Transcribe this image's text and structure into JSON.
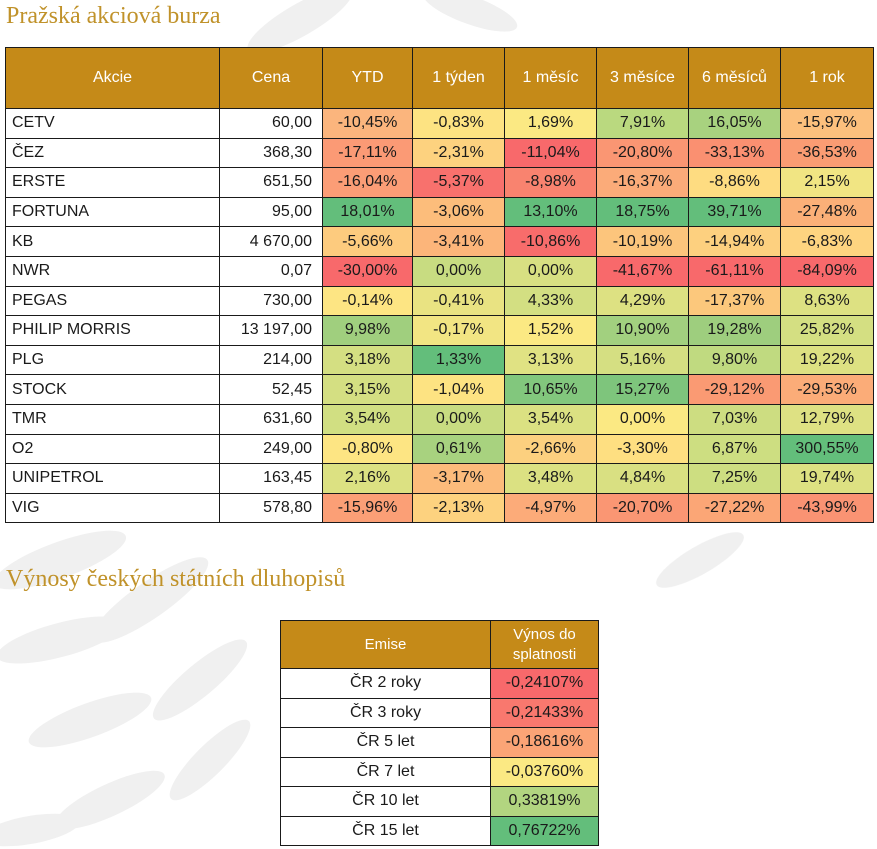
{
  "stocks": {
    "title": "Pražská akciová burza",
    "headers": [
      "Akcie",
      "Cena",
      "YTD",
      "1 týden",
      "1 měsíc",
      "3 měsíce",
      "6 měsíců",
      "1 rok"
    ],
    "rows": [
      {
        "name": "CETV",
        "price": "60,00",
        "values": [
          {
            "text": "-10,45%",
            "color": "#fbb57d"
          },
          {
            "text": "-0,83%",
            "color": "#fde382"
          },
          {
            "text": "1,69%",
            "color": "#fbe983"
          },
          {
            "text": "7,91%",
            "color": "#bad97f"
          },
          {
            "text": "16,05%",
            "color": "#a8d27f"
          },
          {
            "text": "-15,97%",
            "color": "#fcc07d"
          }
        ]
      },
      {
        "name": "ČEZ",
        "price": "368,30",
        "values": [
          {
            "text": "-17,11%",
            "color": "#fb9a75"
          },
          {
            "text": "-2,31%",
            "color": "#fdd27f"
          },
          {
            "text": "-11,04%",
            "color": "#f8696b"
          },
          {
            "text": "-20,80%",
            "color": "#fa9673"
          },
          {
            "text": "-33,13%",
            "color": "#fa9071"
          },
          {
            "text": "-36,53%",
            "color": "#fa9c73"
          }
        ]
      },
      {
        "name": "ERSTE",
        "price": "651,50",
        "values": [
          {
            "text": "-16,04%",
            "color": "#fb9d76"
          },
          {
            "text": "-5,37%",
            "color": "#f8716d"
          },
          {
            "text": "-8,98%",
            "color": "#f9836f"
          },
          {
            "text": "-16,37%",
            "color": "#fbab79"
          },
          {
            "text": "-8,86%",
            "color": "#fedc81"
          },
          {
            "text": "2,15%",
            "color": "#f1e583"
          }
        ]
      },
      {
        "name": "FORTUNA",
        "price": "95,00",
        "values": [
          {
            "text": "18,01%",
            "color": "#63be7b"
          },
          {
            "text": "-3,06%",
            "color": "#fcbd7b"
          },
          {
            "text": "13,10%",
            "color": "#63be7b"
          },
          {
            "text": "18,75%",
            "color": "#63be7b"
          },
          {
            "text": "39,71%",
            "color": "#63be7b"
          },
          {
            "text": "-27,48%",
            "color": "#fbb078"
          }
        ]
      },
      {
        "name": "KB",
        "price": "4 670,00",
        "values": [
          {
            "text": "-5,66%",
            "color": "#fdcb7e"
          },
          {
            "text": "-3,41%",
            "color": "#fcb57a"
          },
          {
            "text": "-10,86%",
            "color": "#f86c6b"
          },
          {
            "text": "-10,19%",
            "color": "#fcc57c"
          },
          {
            "text": "-14,94%",
            "color": "#fdd07f"
          },
          {
            "text": "-6,83%",
            "color": "#fed480"
          }
        ]
      },
      {
        "name": "NWR",
        "price": "0,07",
        "values": [
          {
            "text": "-30,00%",
            "color": "#f8696b"
          },
          {
            "text": "0,00%",
            "color": "#c8dc81"
          },
          {
            "text": "0,00%",
            "color": "#d8e082"
          },
          {
            "text": "-41,67%",
            "color": "#f8696b"
          },
          {
            "text": "-61,11%",
            "color": "#f8696b"
          },
          {
            "text": "-84,09%",
            "color": "#f8696b"
          }
        ]
      },
      {
        "name": "PEGAS",
        "price": "730,00",
        "values": [
          {
            "text": "-0,14%",
            "color": "#fde583"
          },
          {
            "text": "-0,41%",
            "color": "#e9e382"
          },
          {
            "text": "4,33%",
            "color": "#d3df82"
          },
          {
            "text": "4,29%",
            "color": "#dde182"
          },
          {
            "text": "-17,37%",
            "color": "#fcc87c"
          },
          {
            "text": "8,63%",
            "color": "#dde182"
          }
        ]
      },
      {
        "name": "PHILIP MORRIS",
        "price": "13 197,00",
        "values": [
          {
            "text": "9,98%",
            "color": "#a0cf7e"
          },
          {
            "text": "-0,17%",
            "color": "#f2e583"
          },
          {
            "text": "1,52%",
            "color": "#fbe983"
          },
          {
            "text": "10,90%",
            "color": "#a2d07f"
          },
          {
            "text": "19,28%",
            "color": "#9ece7e"
          },
          {
            "text": "25,82%",
            "color": "#d4df82"
          }
        ]
      },
      {
        "name": "PLG",
        "price": "214,00",
        "values": [
          {
            "text": "3,18%",
            "color": "#d4df82"
          },
          {
            "text": "1,33%",
            "color": "#63be7b"
          },
          {
            "text": "3,13%",
            "color": "#e0e283"
          },
          {
            "text": "5,16%",
            "color": "#d5df82"
          },
          {
            "text": "9,80%",
            "color": "#c0da80"
          },
          {
            "text": "19,22%",
            "color": "#dde182"
          }
        ]
      },
      {
        "name": "STOCK",
        "price": "52,45",
        "values": [
          {
            "text": "3,15%",
            "color": "#d4df82"
          },
          {
            "text": "-1,04%",
            "color": "#fde382"
          },
          {
            "text": "10,65%",
            "color": "#82c77d"
          },
          {
            "text": "15,27%",
            "color": "#7ec57c"
          },
          {
            "text": "-29,12%",
            "color": "#fa9a73"
          },
          {
            "text": "-29,53%",
            "color": "#fbac78"
          }
        ]
      },
      {
        "name": "TMR",
        "price": "631,60",
        "values": [
          {
            "text": "3,54%",
            "color": "#d1df82"
          },
          {
            "text": "0,00%",
            "color": "#c8dc81"
          },
          {
            "text": "3,54%",
            "color": "#dbe182"
          },
          {
            "text": "0,00%",
            "color": "#fbe983"
          },
          {
            "text": "7,03%",
            "color": "#cddd81"
          },
          {
            "text": "12,79%",
            "color": "#dee183"
          }
        ]
      },
      {
        "name": "O2",
        "price": "249,00",
        "values": [
          {
            "text": "-0,80%",
            "color": "#fde583"
          },
          {
            "text": "0,61%",
            "color": "#a8d27f"
          },
          {
            "text": "-2,66%",
            "color": "#fcd07f"
          },
          {
            "text": "-3,30%",
            "color": "#fedf81"
          },
          {
            "text": "6,87%",
            "color": "#cdde81"
          },
          {
            "text": "300,55%",
            "color": "#63be7b"
          }
        ]
      },
      {
        "name": "UNIPETROL",
        "price": "163,45",
        "values": [
          {
            "text": "2,16%",
            "color": "#dce182"
          },
          {
            "text": "-3,17%",
            "color": "#fcbb7b"
          },
          {
            "text": "3,48%",
            "color": "#dbe182"
          },
          {
            "text": "4,84%",
            "color": "#d9e082"
          },
          {
            "text": "7,25%",
            "color": "#cdde81"
          },
          {
            "text": "19,74%",
            "color": "#dde182"
          }
        ]
      },
      {
        "name": "VIG",
        "price": "578,80",
        "values": [
          {
            "text": "-15,96%",
            "color": "#fb9f76"
          },
          {
            "text": "-2,13%",
            "color": "#fdd27f"
          },
          {
            "text": "-4,97%",
            "color": "#fcab79"
          },
          {
            "text": "-20,70%",
            "color": "#fa9673"
          },
          {
            "text": "-27,22%",
            "color": "#fba676"
          },
          {
            "text": "-43,99%",
            "color": "#fa9373"
          }
        ]
      }
    ]
  },
  "bonds": {
    "title": "Výnosy českých státních dluhopisů",
    "headers": {
      "emise": "Emise",
      "yield_line1": "Výnos do",
      "yield_line2": "splatnosti"
    },
    "rows": [
      {
        "emise": "ČR 2 roky",
        "yield": "-0,24107%",
        "color": "#f8696b"
      },
      {
        "emise": "ČR 3 roky",
        "yield": "-0,21433%",
        "color": "#f9786e"
      },
      {
        "emise": "ČR 5 let",
        "yield": "-0,18616%",
        "color": "#fba476"
      },
      {
        "emise": "ČR 7 let",
        "yield": "-0,03760%",
        "color": "#fbe983"
      },
      {
        "emise": "ČR 10 let",
        "yield": "0,33819%",
        "color": "#b2d580"
      },
      {
        "emise": "ČR 15 let",
        "yield": "0,76722%",
        "color": "#63be7b"
      }
    ]
  }
}
